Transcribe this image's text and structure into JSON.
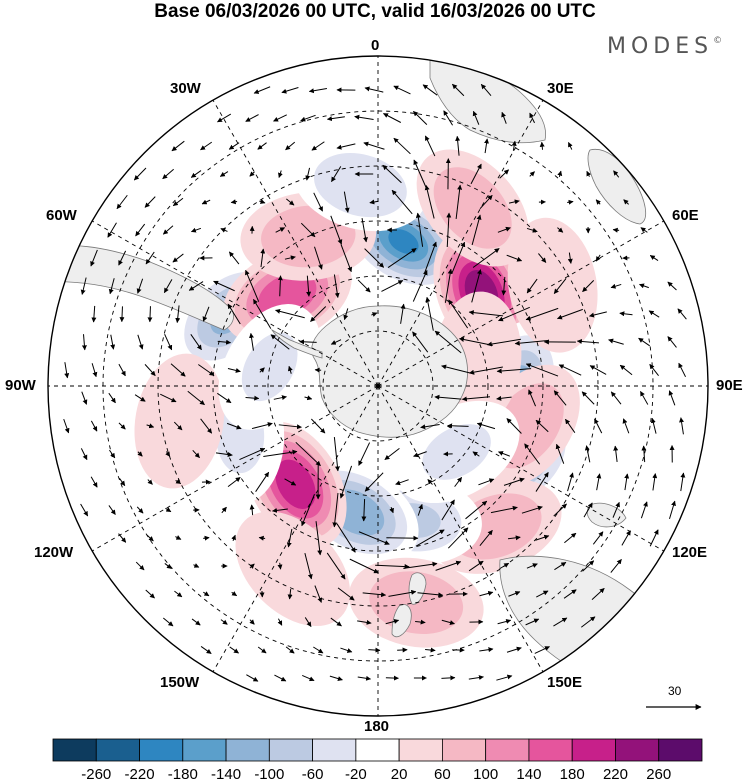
{
  "title": "Base 06/03/2026 00 UTC, valid 16/03/2026 00 UTC",
  "brand": "MODES",
  "brand_mark": "©",
  "longitude_labels": {
    "lon_0": "0",
    "lon_30e": "30E",
    "lon_60e": "60E",
    "lon_90e": "90E",
    "lon_120e": "120E",
    "lon_150e": "150E",
    "lon_180": "180",
    "lon_150w": "150W",
    "lon_120w": "120W",
    "lon_90w": "90W",
    "lon_60w": "60W",
    "lon_30w": "30W"
  },
  "reference_vector": {
    "value": "30"
  },
  "colorbar": {
    "labels": [
      "-260",
      "-220",
      "-180",
      "-140",
      "-100",
      "-60",
      "-20",
      "20",
      "60",
      "100",
      "140",
      "180",
      "220",
      "260"
    ],
    "colors": [
      "#0d3b5e",
      "#1a5f8f",
      "#2e86c1",
      "#5b9fcb",
      "#8fb3d6",
      "#bccae2",
      "#dfe2f1",
      "#ffffff",
      "#f9d9dc",
      "#f5b8c4",
      "#ef8bb2",
      "#e5559d",
      "#c7208a",
      "#93127a",
      "#5c0c6b"
    ]
  },
  "colors": {
    "land": "#eeeeee",
    "ocean": "#ffffff",
    "coast": "#7a7a7a",
    "grid": "#000000"
  },
  "anomalies": [
    {
      "lon": 10,
      "lat": -50,
      "value": -190
    },
    {
      "lon": 48,
      "lat": -52,
      "value": 240
    },
    {
      "lon": 90,
      "lat": -52,
      "value": -120
    },
    {
      "lon": 118,
      "lat": -46,
      "value": -110
    },
    {
      "lon": 105,
      "lat": -48,
      "value": 90
    },
    {
      "lon": 140,
      "lat": -40,
      "value": 70
    },
    {
      "lon": 165,
      "lat": -52,
      "value": -80
    },
    {
      "lon": -170,
      "lat": -55,
      "value": -140
    },
    {
      "lon": -140,
      "lat": -55,
      "value": 210
    },
    {
      "lon": -110,
      "lat": -50,
      "value": -40
    },
    {
      "lon": -65,
      "lat": -45,
      "value": -120
    },
    {
      "lon": -45,
      "lat": -55,
      "value": 160
    },
    {
      "lon": -25,
      "lat": -45,
      "value": 60
    },
    {
      "lon": -5,
      "lat": -35,
      "value": -60
    },
    {
      "lon": 28,
      "lat": -35,
      "value": 80
    },
    {
      "lon": 60,
      "lat": -35,
      "value": 50
    },
    {
      "lon": 170,
      "lat": -30,
      "value": 60
    },
    {
      "lon": -155,
      "lat": -35,
      "value": 50
    },
    {
      "lon": -100,
      "lat": -35,
      "value": 50
    },
    {
      "lon": 75,
      "lat": -62,
      "value": 40
    },
    {
      "lon": -80,
      "lat": -60,
      "value": -30
    },
    {
      "lon": 130,
      "lat": -62,
      "value": -30
    }
  ]
}
